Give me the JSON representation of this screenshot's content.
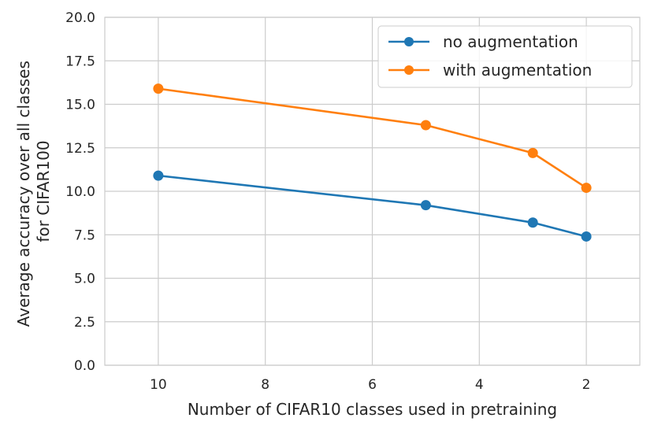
{
  "chart_data": {
    "type": "line",
    "title": "",
    "xlabel": "Number of CIFAR10 classes used in pretraining",
    "ylabel_lines": [
      "Average accuracy over all classes",
      "for CIFAR100"
    ],
    "x_inverted": true,
    "xlim": [
      11,
      1
    ],
    "ylim": [
      0,
      20
    ],
    "x_ticks": [
      10,
      8,
      6,
      4,
      2
    ],
    "x_tick_labels": [
      "10",
      "8",
      "6",
      "4",
      "2"
    ],
    "y_ticks": [
      0,
      2.5,
      5,
      7.5,
      10,
      12.5,
      15,
      17.5,
      20
    ],
    "y_tick_labels": [
      "0.0",
      "2.5",
      "5.0",
      "7.5",
      "10.0",
      "12.5",
      "15.0",
      "17.5",
      "20.0"
    ],
    "grid": true,
    "legend_position": "top-right",
    "x": [
      10,
      5,
      3,
      2
    ],
    "series": [
      {
        "name": "no augmentation",
        "color": "#1f77b4",
        "values": [
          10.9,
          9.2,
          8.2,
          7.4
        ]
      },
      {
        "name": "with augmentation",
        "color": "#ff7f0e",
        "values": [
          15.9,
          13.8,
          12.2,
          10.2
        ]
      }
    ]
  }
}
